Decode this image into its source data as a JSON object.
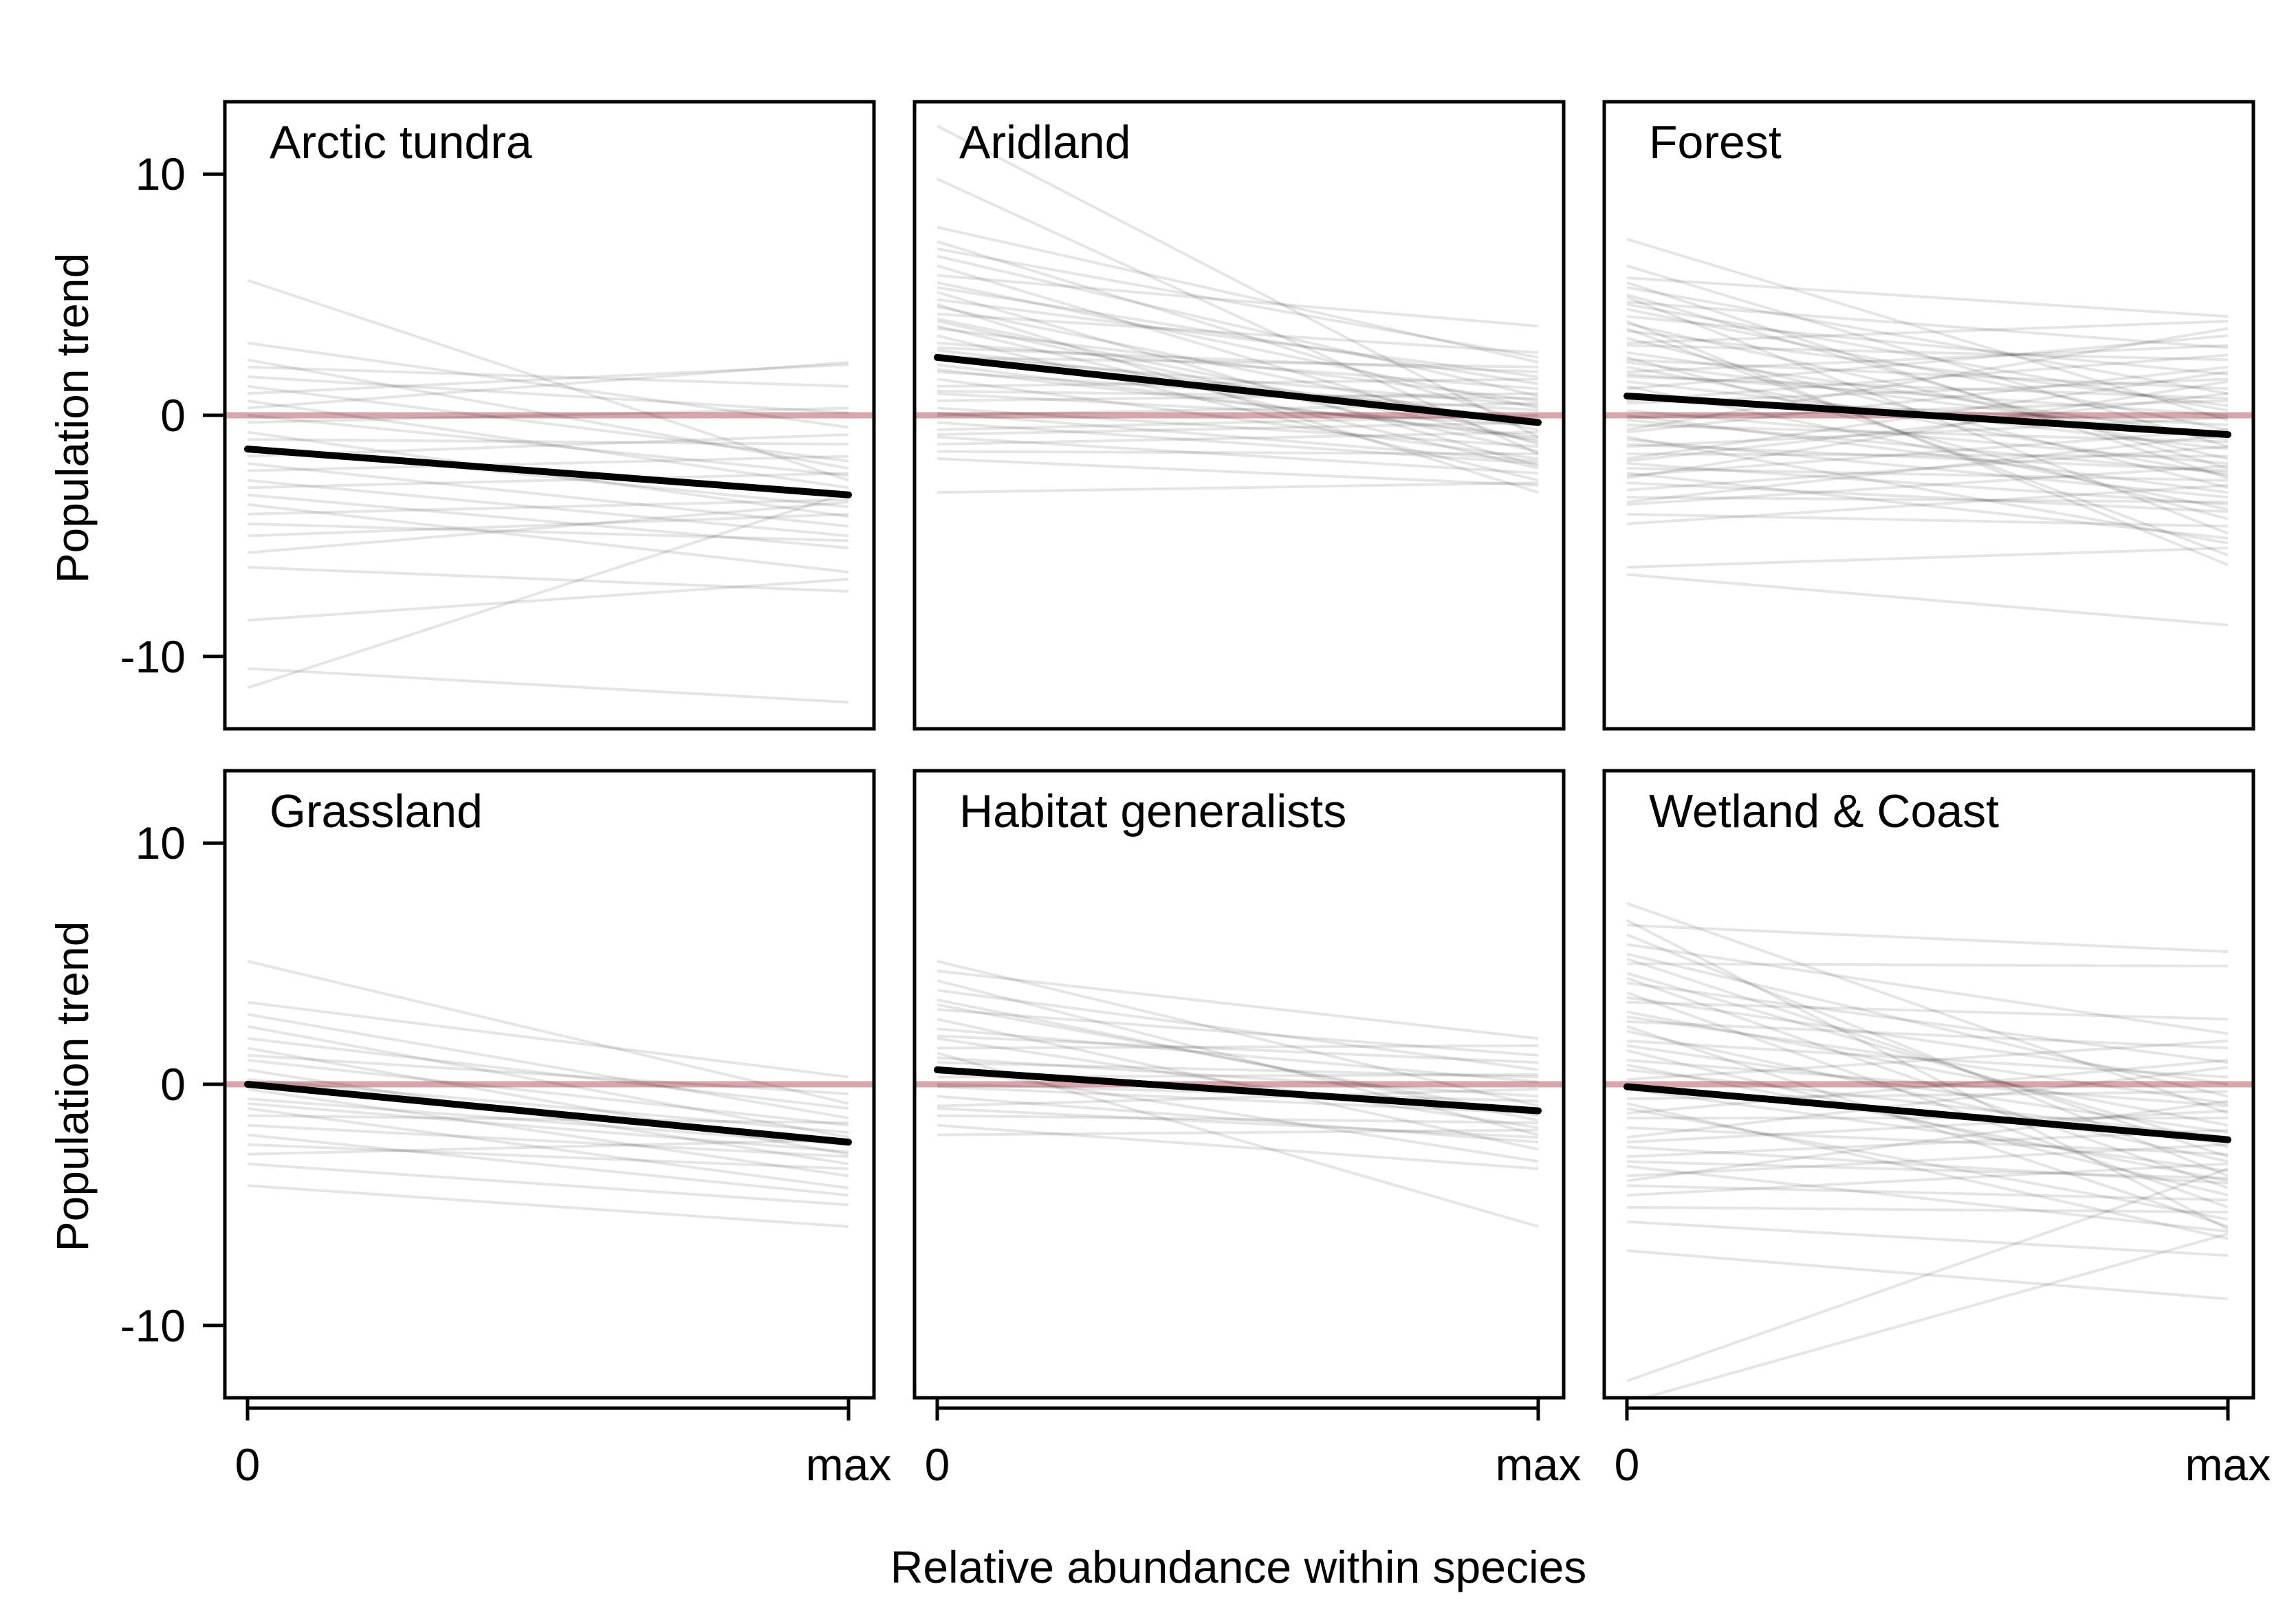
{
  "chart_data": {
    "type": "line",
    "layout": "3x2 small multiples",
    "xlabel": "Relative abundance within species",
    "ylabel": "Population trend",
    "x_tick_labels": [
      "0",
      "max"
    ],
    "y_ticks": [
      10,
      0,
      -10
    ],
    "y_tick_labels": [
      "10",
      "0",
      "-10"
    ],
    "ylim": [
      -13,
      13
    ],
    "reference_line": {
      "y": 0,
      "color": "#d8a5aa"
    },
    "colors": {
      "species_line": "#000000",
      "species_line_opacity": 0.1,
      "mean_line": "#000000"
    },
    "panels": [
      {
        "title": "Arctic tundra",
        "mean_line": {
          "start": -1.4,
          "end": -3.3
        },
        "species_lines": [
          [
            5.6,
            -2.7
          ],
          [
            3.0,
            -0.5
          ],
          [
            2.3,
            -2.2
          ],
          [
            2.0,
            1.2
          ],
          [
            1.6,
            0.1
          ],
          [
            1.2,
            -1.9
          ],
          [
            0.9,
            2.1
          ],
          [
            0.6,
            -3.0
          ],
          [
            0.3,
            2.2
          ],
          [
            0.0,
            -2.5
          ],
          [
            -0.3,
            0.3
          ],
          [
            -0.7,
            -4.2
          ],
          [
            -1.0,
            -1.2
          ],
          [
            -1.3,
            -3.8
          ],
          [
            -1.7,
            -0.8
          ],
          [
            -2.0,
            -4.6
          ],
          [
            -2.3,
            -1.7
          ],
          [
            -2.7,
            -5.0
          ],
          [
            -3.0,
            -2.4
          ],
          [
            -3.3,
            -5.5
          ],
          [
            -3.7,
            -6.5
          ],
          [
            -4.1,
            -3.5
          ],
          [
            -4.5,
            -5.2
          ],
          [
            -5.0,
            -4.1
          ],
          [
            -5.7,
            -3.6
          ],
          [
            -6.3,
            -7.3
          ],
          [
            -8.5,
            -6.8
          ],
          [
            -11.3,
            -3.2
          ],
          [
            -10.5,
            -11.9
          ]
        ]
      },
      {
        "title": "Aridland",
        "mean_line": {
          "start": 2.4,
          "end": -0.3
        },
        "species_lines": [
          [
            12.0,
            -0.9
          ],
          [
            9.8,
            -1.6
          ],
          [
            7.8,
            2.2
          ],
          [
            7.2,
            -0.4
          ],
          [
            6.6,
            0.8
          ],
          [
            6.2,
            -1.2
          ],
          [
            5.8,
            3.7
          ],
          [
            5.5,
            0.3
          ],
          [
            5.1,
            -2.1
          ],
          [
            4.8,
            1.6
          ],
          [
            4.5,
            -0.6
          ],
          [
            4.2,
            2.6
          ],
          [
            3.9,
            -1.5
          ],
          [
            3.6,
            0.6
          ],
          [
            3.3,
            -2.7
          ],
          [
            3.0,
            1.1
          ],
          [
            2.7,
            -0.2
          ],
          [
            2.4,
            2.0
          ],
          [
            2.1,
            -1.0
          ],
          [
            1.8,
            0.2
          ],
          [
            1.5,
            -1.8
          ],
          [
            1.2,
            1.5
          ],
          [
            0.9,
            -0.4
          ],
          [
            0.6,
            0.9
          ],
          [
            0.3,
            -1.3
          ],
          [
            0.0,
            0.5
          ],
          [
            -0.3,
            -2.0
          ],
          [
            -0.6,
            0.0
          ],
          [
            -0.9,
            -2.4
          ],
          [
            -1.2,
            -0.7
          ],
          [
            -1.5,
            -1.6
          ],
          [
            -1.8,
            -2.9
          ],
          [
            -3.2,
            -2.8
          ],
          [
            4.6,
            -3.2
          ],
          [
            3.7,
            -2.2
          ],
          [
            2.8,
            1.8
          ],
          [
            1.9,
            -0.9
          ],
          [
            1.0,
            0.7
          ],
          [
            0.1,
            -1.9
          ],
          [
            -0.8,
            -0.3
          ],
          [
            6.9,
            2.4
          ],
          [
            5.3,
            1.3
          ],
          [
            4.0,
            -1.1
          ],
          [
            2.5,
            0.4
          ]
        ]
      },
      {
        "title": "Forest",
        "mean_line": {
          "start": 0.8,
          "end": -0.8
        },
        "species_lines": [
          [
            7.3,
            -0.2
          ],
          [
            6.2,
            -1.3
          ],
          [
            5.7,
            4.1
          ],
          [
            5.3,
            0.9
          ],
          [
            5.0,
            -2.2
          ],
          [
            4.7,
            2.8
          ],
          [
            4.4,
            -0.6
          ],
          [
            4.1,
            1.7
          ],
          [
            3.8,
            -1.8
          ],
          [
            3.5,
            0.4
          ],
          [
            3.2,
            -3.0
          ],
          [
            2.9,
            2.3
          ],
          [
            2.6,
            -0.9
          ],
          [
            2.3,
            1.1
          ],
          [
            2.0,
            -2.5
          ],
          [
            1.7,
            0.0
          ],
          [
            1.4,
            -1.4
          ],
          [
            1.1,
            3.3
          ],
          [
            0.8,
            -0.4
          ],
          [
            0.5,
            1.5
          ],
          [
            0.2,
            -2.0
          ],
          [
            -0.1,
            0.6
          ],
          [
            -0.4,
            -1.1
          ],
          [
            -0.7,
            2.0
          ],
          [
            -1.0,
            -3.4
          ],
          [
            -1.3,
            -0.1
          ],
          [
            -1.6,
            -1.7
          ],
          [
            -1.9,
            0.9
          ],
          [
            -2.2,
            -2.7
          ],
          [
            -2.5,
            -0.6
          ],
          [
            -2.8,
            -4.0
          ],
          [
            -3.1,
            -1.3
          ],
          [
            -3.4,
            -3.6
          ],
          [
            -3.7,
            -2.1
          ],
          [
            -4.1,
            -4.6
          ],
          [
            -4.5,
            -2.9
          ],
          [
            -6.3,
            -5.5
          ],
          [
            -6.6,
            -8.7
          ],
          [
            4.9,
            -4.9
          ],
          [
            3.6,
            -5.8
          ],
          [
            2.4,
            -4.3
          ],
          [
            1.2,
            -3.9
          ],
          [
            0.0,
            -3.2
          ],
          [
            -1.2,
            -2.3
          ],
          [
            -2.4,
            -5.1
          ],
          [
            -3.6,
            -0.8
          ],
          [
            3.0,
            3.9
          ],
          [
            1.8,
            2.9
          ],
          [
            0.6,
            2.5
          ],
          [
            -0.6,
            3.6
          ],
          [
            -1.8,
            1.8
          ],
          [
            4.6,
            0.2
          ],
          [
            2.2,
            -1.0
          ],
          [
            -0.2,
            -2.4
          ],
          [
            -2.0,
            -3.7
          ],
          [
            -2.6,
            1.4
          ],
          [
            5.5,
            -2.6
          ],
          [
            3.9,
            -6.2
          ],
          [
            1.6,
            0.7
          ],
          [
            -0.9,
            -5.3
          ]
        ]
      },
      {
        "title": "Grassland",
        "mean_line": {
          "start": 0.0,
          "end": -2.4
        },
        "species_lines": [
          [
            5.1,
            -0.8
          ],
          [
            3.4,
            0.3
          ],
          [
            2.9,
            -1.4
          ],
          [
            2.4,
            -2.2
          ],
          [
            1.9,
            -1.0
          ],
          [
            1.5,
            -2.9
          ],
          [
            1.0,
            -1.7
          ],
          [
            0.6,
            -3.3
          ],
          [
            0.2,
            -2.0
          ],
          [
            -0.2,
            -3.8
          ],
          [
            -0.6,
            -2.5
          ],
          [
            -1.0,
            -4.3
          ],
          [
            -1.3,
            -1.6
          ],
          [
            -1.7,
            -3.0
          ],
          [
            -2.1,
            -4.6
          ],
          [
            -2.5,
            -3.5
          ],
          [
            -2.9,
            -2.3
          ],
          [
            -3.3,
            -5.0
          ],
          [
            -4.2,
            -5.9
          ],
          [
            1.2,
            -0.4
          ],
          [
            -0.8,
            -2.8
          ]
        ]
      },
      {
        "title": "Habitat generalists",
        "mean_line": {
          "start": 0.6,
          "end": -1.1
        },
        "species_lines": [
          [
            5.1,
            -0.9
          ],
          [
            4.7,
            1.9
          ],
          [
            4.3,
            -2.1
          ],
          [
            3.9,
            0.6
          ],
          [
            3.5,
            -1.5
          ],
          [
            3.1,
            1.2
          ],
          [
            2.7,
            -2.7
          ],
          [
            2.3,
            0.1
          ],
          [
            1.9,
            -1.8
          ],
          [
            1.5,
            1.6
          ],
          [
            1.1,
            -0.5
          ],
          [
            0.7,
            -3.2
          ],
          [
            0.3,
            0.4
          ],
          [
            -0.1,
            -1.2
          ],
          [
            -0.5,
            -2.4
          ],
          [
            -0.9,
            -0.2
          ],
          [
            -1.3,
            -1.6
          ],
          [
            -1.7,
            -3.5
          ],
          [
            -2.1,
            -1.9
          ],
          [
            1.3,
            -5.9
          ],
          [
            2.0,
            0.9
          ],
          [
            0.0,
            -0.7
          ],
          [
            -1.0,
            -2.2
          ],
          [
            3.3,
            -1.3
          ],
          [
            0.9,
            0.3
          ]
        ]
      },
      {
        "title": "Wetland & Coast",
        "mean_line": {
          "start": -0.1,
          "end": -2.3
        },
        "species_lines": [
          [
            7.5,
            -1.2
          ],
          [
            6.6,
            5.5
          ],
          [
            6.2,
            -3.8
          ],
          [
            5.8,
            2.1
          ],
          [
            5.4,
            -0.5
          ],
          [
            5.0,
            4.9
          ],
          [
            4.6,
            -2.6
          ],
          [
            4.2,
            0.9
          ],
          [
            3.8,
            -5.1
          ],
          [
            3.4,
            2.7
          ],
          [
            3.0,
            -1.7
          ],
          [
            2.6,
            1.5
          ],
          [
            2.2,
            -3.2
          ],
          [
            1.8,
            0.3
          ],
          [
            1.4,
            -4.6
          ],
          [
            1.0,
            -0.9
          ],
          [
            0.6,
            -2.2
          ],
          [
            0.2,
            1.8
          ],
          [
            -0.2,
            -3.6
          ],
          [
            -0.6,
            -0.3
          ],
          [
            -1.0,
            -5.6
          ],
          [
            -1.4,
            -1.4
          ],
          [
            -1.8,
            -2.9
          ],
          [
            -2.2,
            0.7
          ],
          [
            -2.6,
            -4.1
          ],
          [
            -3.0,
            -1.9
          ],
          [
            -3.4,
            -6.1
          ],
          [
            -3.8,
            -2.5
          ],
          [
            -4.2,
            -4.8
          ],
          [
            -4.6,
            -3.3
          ],
          [
            -5.1,
            -5.3
          ],
          [
            -5.7,
            -7.1
          ],
          [
            -6.9,
            -8.9
          ],
          [
            -12.3,
            -3.5
          ],
          [
            -13.2,
            -6.2
          ],
          [
            6.8,
            -6.0
          ],
          [
            4.4,
            -4.3
          ],
          [
            2.4,
            -5.9
          ],
          [
            0.8,
            -4.0
          ],
          [
            -0.8,
            -6.4
          ],
          [
            -2.4,
            -1.1
          ],
          [
            -4.0,
            -0.7
          ],
          [
            3.6,
            0.0
          ],
          [
            1.6,
            -2.0
          ],
          [
            -1.2,
            1.0
          ],
          [
            5.2,
            -3.0
          ],
          [
            2.8,
            -0.8
          ],
          [
            -3.2,
            -3.9
          ]
        ]
      }
    ]
  }
}
